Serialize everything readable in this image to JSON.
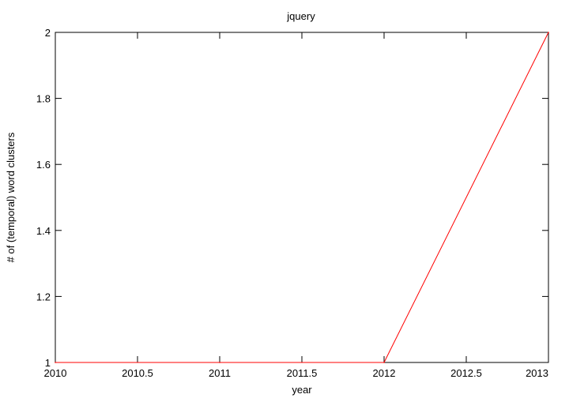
{
  "chart_data": {
    "type": "line",
    "title": "jquery",
    "xlabel": "year",
    "ylabel": "# of (temporal) word clusters",
    "xlim": [
      2010,
      2013
    ],
    "ylim": [
      1,
      2
    ],
    "x_ticks": [
      2010,
      2010.5,
      2011,
      2011.5,
      2012,
      2012.5,
      2013
    ],
    "x_tick_labels": [
      "2010",
      "2010.5",
      "2011",
      "2011.5",
      "2012",
      "2012.5",
      "2013"
    ],
    "y_ticks": [
      1,
      1.2,
      1.4,
      1.6,
      1.8,
      2
    ],
    "y_tick_labels": [
      "1",
      "1.2",
      "1.4",
      "1.6",
      "1.8",
      "2"
    ],
    "grid": false,
    "legend": "none",
    "series": [
      {
        "color": "#ff0000",
        "x": [
          2010,
          2011,
          2012,
          2013
        ],
        "y": [
          1,
          1,
          1,
          2
        ]
      }
    ]
  }
}
